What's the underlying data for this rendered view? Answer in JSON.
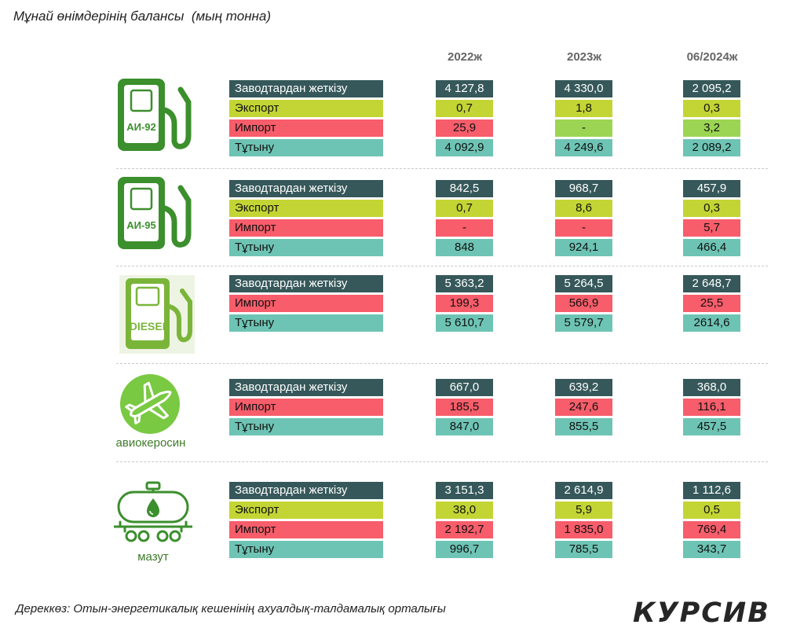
{
  "title": "Мұнай өнімдерінің балансы  (мың тонна)",
  "source": "Дереккөз: Отын-энергетикалық кешенінің ахуалдық-талдамалық орталығы",
  "logo": "КУРСИВ",
  "colors": {
    "supply": "#36585a",
    "export": "#c3d535",
    "import": "#f75d6a",
    "consumption": "#6ec4b4",
    "import_alt": "#9bd553",
    "icon_green": "#3b8f2c",
    "diesel_green": "#7ab53a",
    "jet_green": "#7ac943"
  },
  "chart_data": {
    "type": "table",
    "columns": [
      "2022ж",
      "2023ж",
      "06/2024ж"
    ],
    "groups": [
      {
        "product": "АИ-92",
        "icon": "fuel-pump-icon",
        "rows": [
          {
            "kind": "supply",
            "label": "Заводтардан жеткізу",
            "values": [
              "4 127,8",
              "4 330,0",
              "2 095,2"
            ]
          },
          {
            "kind": "export",
            "label": "Экспорт",
            "values": [
              "0,7",
              "1,8",
              "0,3"
            ]
          },
          {
            "kind": "import",
            "label": "Импорт",
            "values": [
              "25,9",
              "-",
              "3,2"
            ],
            "alt_cells": [
              1,
              2
            ]
          },
          {
            "kind": "consumption",
            "label": "Тұтыну",
            "values": [
              "4 092,9",
              "4 249,6",
              "2 089,2"
            ]
          }
        ]
      },
      {
        "product": "АИ-95",
        "icon": "fuel-pump-icon",
        "rows": [
          {
            "kind": "supply",
            "label": "Заводтардан жеткізу",
            "values": [
              "842,5",
              "968,7",
              "457,9"
            ]
          },
          {
            "kind": "export",
            "label": "Экспорт",
            "values": [
              "0,7",
              "8,6",
              "0,3"
            ]
          },
          {
            "kind": "import",
            "label": "Импорт",
            "values": [
              "-",
              "-",
              "5,7"
            ]
          },
          {
            "kind": "consumption",
            "label": "Тұтыну",
            "values": [
              "848",
              "924,1",
              "466,4"
            ]
          }
        ]
      },
      {
        "product": "DIESEL",
        "icon": "diesel-pump-icon",
        "rows": [
          {
            "kind": "supply",
            "label": "Заводтардан жеткізу",
            "values": [
              "5 363,2",
              "5 264,5",
              "2 648,7"
            ]
          },
          {
            "kind": "import",
            "label": "Импорт",
            "values": [
              "199,3",
              "566,9",
              "25,5"
            ]
          },
          {
            "kind": "consumption",
            "label": "Тұтыну",
            "values": [
              "5 610,7",
              "5 579,7",
              "2614,6"
            ]
          }
        ]
      },
      {
        "product": "авиокеросин",
        "icon": "airplane-icon",
        "rows": [
          {
            "kind": "supply",
            "label": "Заводтардан жеткізу",
            "values": [
              "667,0",
              "639,2",
              "368,0"
            ]
          },
          {
            "kind": "import",
            "label": "Импорт",
            "values": [
              "185,5",
              "247,6",
              "116,1"
            ]
          },
          {
            "kind": "consumption",
            "label": "Тұтыну",
            "values": [
              "847,0",
              "855,5",
              "457,5"
            ]
          }
        ]
      },
      {
        "product": "мазут",
        "icon": "tank-car-icon",
        "rows": [
          {
            "kind": "supply",
            "label": "Заводтардан жеткізу",
            "values": [
              "3 151,3",
              "2 614,9",
              "1 112,6"
            ]
          },
          {
            "kind": "export",
            "label": "Экспорт",
            "values": [
              "38,0",
              "5,9",
              "0,5"
            ]
          },
          {
            "kind": "import",
            "label": "Импорт",
            "values": [
              "2 192,7",
              "1 835,0",
              "769,4"
            ]
          },
          {
            "kind": "consumption",
            "label": "Тұтыну",
            "values": [
              "996,7",
              "785,5",
              "343,7"
            ]
          }
        ]
      }
    ]
  }
}
